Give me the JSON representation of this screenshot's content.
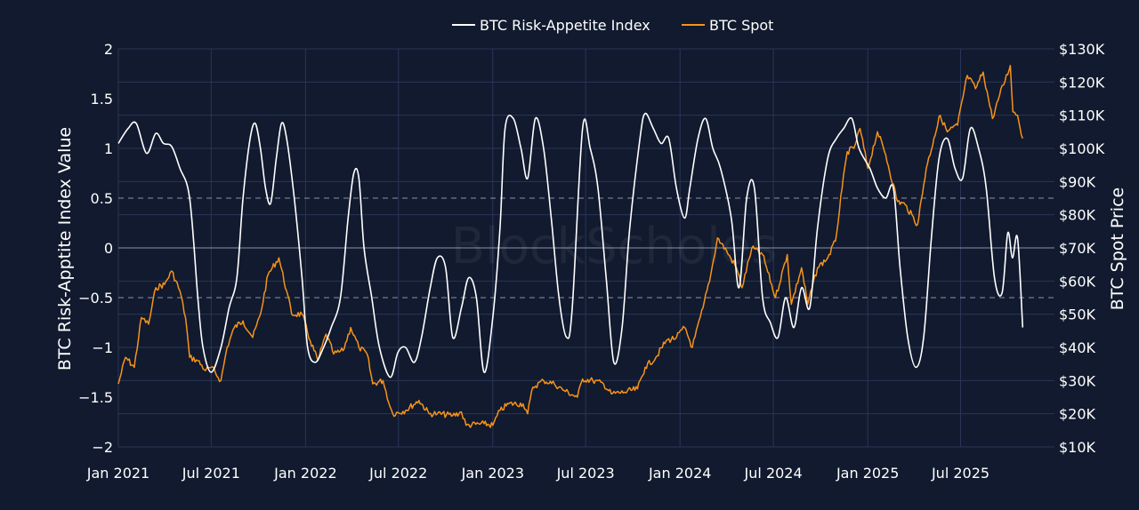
{
  "chart_data": {
    "type": "line",
    "watermark": "BlockScholes",
    "legend": {
      "placement": "top-center",
      "entries": [
        "BTC Risk-Appetite Index",
        "BTC Spot"
      ]
    },
    "colors": {
      "background": "#111a2e",
      "grid": "#2a3658",
      "index_line": "#ffffff",
      "spot_line": "#f7931a"
    },
    "x": {
      "min": "2021-01-01",
      "max": "2025-12-31",
      "ticks": [
        "2021-01-01",
        "2021-07-01",
        "2022-01-01",
        "2022-07-01",
        "2023-01-01",
        "2023-07-01",
        "2024-01-01",
        "2024-07-01",
        "2025-01-01",
        "2025-07-01"
      ],
      "tick_labels": [
        "Jan 2021",
        "Jul 2021",
        "Jan 2022",
        "Jul 2022",
        "Jan 2023",
        "Jul 2023",
        "Jan 2024",
        "Jul 2024",
        "Jan 2025",
        "Jul 2025"
      ]
    },
    "y_left": {
      "label": "BTC Risk-Apptite Index Value",
      "range": [
        -2,
        2
      ],
      "ticks": [
        2,
        1.5,
        1,
        0.5,
        0,
        -0.5,
        -1,
        -1.5,
        -2
      ],
      "tick_labels": [
        "2",
        "1.5",
        "1",
        "0.5",
        "0",
        "−0.5",
        "−1",
        "−1.5",
        "−2"
      ],
      "reference_lines": [
        0.5,
        -0.5
      ]
    },
    "y_right": {
      "label": "BTC Spot Price",
      "range": [
        10000,
        130000
      ],
      "ticks": [
        130000,
        120000,
        110000,
        100000,
        90000,
        80000,
        70000,
        60000,
        50000,
        40000,
        30000,
        20000,
        10000
      ],
      "tick_labels": [
        "$130K",
        "$120K",
        "$110K",
        "$100K",
        "$90K",
        "$80K",
        "$70K",
        "$60K",
        "$50K",
        "$40K",
        "$30K",
        "$20K",
        "$10K"
      ]
    },
    "series": [
      {
        "name": "BTC Risk-Appetite Index",
        "axis": "left",
        "points": [
          [
            "2021-01-01",
            1.05
          ],
          [
            "2021-01-20",
            1.2
          ],
          [
            "2021-02-05",
            1.25
          ],
          [
            "2021-02-25",
            0.95
          ],
          [
            "2021-03-15",
            1.15
          ],
          [
            "2021-03-30",
            1.05
          ],
          [
            "2021-04-15",
            1.02
          ],
          [
            "2021-05-01",
            0.8
          ],
          [
            "2021-05-20",
            0.5
          ],
          [
            "2021-06-05",
            -0.5
          ],
          [
            "2021-06-15",
            -1.0
          ],
          [
            "2021-07-01",
            -1.25
          ],
          [
            "2021-07-20",
            -1.0
          ],
          [
            "2021-08-05",
            -0.6
          ],
          [
            "2021-08-20",
            -0.3
          ],
          [
            "2021-09-01",
            0.5
          ],
          [
            "2021-09-15",
            1.1
          ],
          [
            "2021-09-25",
            1.25
          ],
          [
            "2021-10-05",
            1.0
          ],
          [
            "2021-10-15",
            0.6
          ],
          [
            "2021-10-25",
            0.45
          ],
          [
            "2021-11-05",
            0.9
          ],
          [
            "2021-11-15",
            1.25
          ],
          [
            "2021-11-25",
            1.1
          ],
          [
            "2021-12-10",
            0.5
          ],
          [
            "2021-12-25",
            -0.3
          ],
          [
            "2022-01-05",
            -1.0
          ],
          [
            "2022-01-20",
            -1.15
          ],
          [
            "2022-02-05",
            -1.0
          ],
          [
            "2022-02-20",
            -0.8
          ],
          [
            "2022-03-10",
            -0.5
          ],
          [
            "2022-03-25",
            0.3
          ],
          [
            "2022-04-05",
            0.75
          ],
          [
            "2022-04-15",
            0.7
          ],
          [
            "2022-04-25",
            0.0
          ],
          [
            "2022-05-10",
            -0.5
          ],
          [
            "2022-05-25",
            -1.0
          ],
          [
            "2022-06-15",
            -1.3
          ],
          [
            "2022-06-30",
            -1.05
          ],
          [
            "2022-07-15",
            -1.0
          ],
          [
            "2022-08-01",
            -1.15
          ],
          [
            "2022-08-15",
            -0.9
          ],
          [
            "2022-09-01",
            -0.4
          ],
          [
            "2022-09-15",
            -0.1
          ],
          [
            "2022-10-01",
            -0.2
          ],
          [
            "2022-10-15",
            -0.9
          ],
          [
            "2022-11-01",
            -0.6
          ],
          [
            "2022-11-15",
            -0.3
          ],
          [
            "2022-11-30",
            -0.5
          ],
          [
            "2022-12-15",
            -1.25
          ],
          [
            "2023-01-01",
            -0.7
          ],
          [
            "2023-01-15",
            0.2
          ],
          [
            "2023-01-25",
            1.2
          ],
          [
            "2023-02-10",
            1.3
          ],
          [
            "2023-02-25",
            1.0
          ],
          [
            "2023-03-10",
            0.7
          ],
          [
            "2023-03-25",
            1.3
          ],
          [
            "2023-04-10",
            1.0
          ],
          [
            "2023-04-25",
            0.3
          ],
          [
            "2023-05-10",
            -0.5
          ],
          [
            "2023-05-25",
            -0.9
          ],
          [
            "2023-06-05",
            -0.6
          ],
          [
            "2023-06-25",
            1.2
          ],
          [
            "2023-07-10",
            1.0
          ],
          [
            "2023-07-25",
            0.6
          ],
          [
            "2023-08-10",
            -0.3
          ],
          [
            "2023-08-25",
            -1.15
          ],
          [
            "2023-09-10",
            -0.8
          ],
          [
            "2023-09-25",
            0.2
          ],
          [
            "2023-10-15",
            1.1
          ],
          [
            "2023-10-25",
            1.35
          ],
          [
            "2023-11-10",
            1.2
          ],
          [
            "2023-11-25",
            1.05
          ],
          [
            "2023-12-10",
            1.1
          ],
          [
            "2023-12-25",
            0.6
          ],
          [
            "2024-01-10",
            0.3
          ],
          [
            "2024-01-20",
            0.6
          ],
          [
            "2024-02-05",
            1.1
          ],
          [
            "2024-02-20",
            1.3
          ],
          [
            "2024-03-05",
            1.0
          ],
          [
            "2024-03-20",
            0.8
          ],
          [
            "2024-04-10",
            0.3
          ],
          [
            "2024-04-25",
            -0.4
          ],
          [
            "2024-05-10",
            0.5
          ],
          [
            "2024-05-25",
            0.6
          ],
          [
            "2024-06-10",
            -0.5
          ],
          [
            "2024-06-25",
            -0.75
          ],
          [
            "2024-07-10",
            -0.9
          ],
          [
            "2024-07-25",
            -0.5
          ],
          [
            "2024-08-10",
            -0.8
          ],
          [
            "2024-08-25",
            -0.4
          ],
          [
            "2024-09-10",
            -0.6
          ],
          [
            "2024-09-25",
            0.2
          ],
          [
            "2024-10-15",
            0.9
          ],
          [
            "2024-11-01",
            1.1
          ],
          [
            "2024-11-15",
            1.2
          ],
          [
            "2024-12-01",
            1.3
          ],
          [
            "2024-12-15",
            1.0
          ],
          [
            "2025-01-05",
            0.8
          ],
          [
            "2025-01-20",
            0.6
          ],
          [
            "2025-02-05",
            0.5
          ],
          [
            "2025-02-20",
            0.6
          ],
          [
            "2025-03-05",
            -0.2
          ],
          [
            "2025-03-20",
            -0.9
          ],
          [
            "2025-04-05",
            -1.2
          ],
          [
            "2025-04-20",
            -0.9
          ],
          [
            "2025-05-05",
            0.1
          ],
          [
            "2025-05-20",
            0.9
          ],
          [
            "2025-06-05",
            1.1
          ],
          [
            "2025-06-20",
            0.8
          ],
          [
            "2025-07-05",
            0.7
          ],
          [
            "2025-07-20",
            1.2
          ],
          [
            "2025-08-05",
            1.0
          ],
          [
            "2025-08-20",
            0.6
          ],
          [
            "2025-09-05",
            -0.3
          ],
          [
            "2025-09-20",
            -0.45
          ],
          [
            "2025-10-01",
            0.15
          ],
          [
            "2025-10-10",
            -0.1
          ],
          [
            "2025-10-20",
            0.1
          ],
          [
            "2025-10-30",
            -0.8
          ]
        ]
      },
      {
        "name": "BTC Spot",
        "axis": "right",
        "points": [
          [
            "2021-01-01",
            29000
          ],
          [
            "2021-01-15",
            37000
          ],
          [
            "2021-02-01",
            34000
          ],
          [
            "2021-02-15",
            49000
          ],
          [
            "2021-03-01",
            47000
          ],
          [
            "2021-03-15",
            58000
          ],
          [
            "2021-04-01",
            59000
          ],
          [
            "2021-04-15",
            63000
          ],
          [
            "2021-05-01",
            57000
          ],
          [
            "2021-05-12",
            49000
          ],
          [
            "2021-05-20",
            37000
          ],
          [
            "2021-06-05",
            36000
          ],
          [
            "2021-06-20",
            33000
          ],
          [
            "2021-07-01",
            34000
          ],
          [
            "2021-07-20",
            30000
          ],
          [
            "2021-08-01",
            40000
          ],
          [
            "2021-08-15",
            46000
          ],
          [
            "2021-09-01",
            48000
          ],
          [
            "2021-09-20",
            43000
          ],
          [
            "2021-10-05",
            50000
          ],
          [
            "2021-10-20",
            62000
          ],
          [
            "2021-11-10",
            67000
          ],
          [
            "2021-11-25",
            57000
          ],
          [
            "2021-12-05",
            50000
          ],
          [
            "2021-12-25",
            50000
          ],
          [
            "2022-01-10",
            42000
          ],
          [
            "2022-01-25",
            36000
          ],
          [
            "2022-02-10",
            44000
          ],
          [
            "2022-02-25",
            38000
          ],
          [
            "2022-03-15",
            39000
          ],
          [
            "2022-03-30",
            46000
          ],
          [
            "2022-04-15",
            40000
          ],
          [
            "2022-05-01",
            38000
          ],
          [
            "2022-05-12",
            29000
          ],
          [
            "2022-06-01",
            30000
          ],
          [
            "2022-06-15",
            22000
          ],
          [
            "2022-06-20",
            20000
          ],
          [
            "2022-07-15",
            21000
          ],
          [
            "2022-08-10",
            24000
          ],
          [
            "2022-08-30",
            20000
          ],
          [
            "2022-09-15",
            20000
          ],
          [
            "2022-10-15",
            19500
          ],
          [
            "2022-11-01",
            20500
          ],
          [
            "2022-11-10",
            16500
          ],
          [
            "2022-12-15",
            17000
          ],
          [
            "2023-01-01",
            16500
          ],
          [
            "2023-01-15",
            21000
          ],
          [
            "2023-02-01",
            23000
          ],
          [
            "2023-03-01",
            23000
          ],
          [
            "2023-03-10",
            20000
          ],
          [
            "2023-03-20",
            28000
          ],
          [
            "2023-04-10",
            30000
          ],
          [
            "2023-05-01",
            29000
          ],
          [
            "2023-05-20",
            27000
          ],
          [
            "2023-06-15",
            25000
          ],
          [
            "2023-06-25",
            30500
          ],
          [
            "2023-07-15",
            30000
          ],
          [
            "2023-08-05",
            29000
          ],
          [
            "2023-08-20",
            26000
          ],
          [
            "2023-09-15",
            26500
          ],
          [
            "2023-10-10",
            27500
          ],
          [
            "2023-10-25",
            34000
          ],
          [
            "2023-11-15",
            37000
          ],
          [
            "2023-12-05",
            42000
          ],
          [
            "2023-12-25",
            43000
          ],
          [
            "2024-01-10",
            46000
          ],
          [
            "2024-01-25",
            40000
          ],
          [
            "2024-02-15",
            52000
          ],
          [
            "2024-03-01",
            62000
          ],
          [
            "2024-03-14",
            73000
          ],
          [
            "2024-04-01",
            69000
          ],
          [
            "2024-04-20",
            64000
          ],
          [
            "2024-05-01",
            58000
          ],
          [
            "2024-05-20",
            70000
          ],
          [
            "2024-06-10",
            68000
          ],
          [
            "2024-07-05",
            55000
          ],
          [
            "2024-07-28",
            68000
          ],
          [
            "2024-08-05",
            53000
          ],
          [
            "2024-08-25",
            64000
          ],
          [
            "2024-09-06",
            53000
          ],
          [
            "2024-09-25",
            64000
          ],
          [
            "2024-10-15",
            67000
          ],
          [
            "2024-10-30",
            72000
          ],
          [
            "2024-11-12",
            88000
          ],
          [
            "2024-11-22",
            99000
          ],
          [
            "2024-12-05",
            100000
          ],
          [
            "2024-12-17",
            106000
          ],
          [
            "2025-01-01",
            94000
          ],
          [
            "2025-01-20",
            105000
          ],
          [
            "2025-02-05",
            98000
          ],
          [
            "2025-02-28",
            84000
          ],
          [
            "2025-03-15",
            83000
          ],
          [
            "2025-04-08",
            77000
          ],
          [
            "2025-04-25",
            94000
          ],
          [
            "2025-05-10",
            103000
          ],
          [
            "2025-05-22",
            110000
          ],
          [
            "2025-06-05",
            105000
          ],
          [
            "2025-06-25",
            107000
          ],
          [
            "2025-07-14",
            122000
          ],
          [
            "2025-07-30",
            118000
          ],
          [
            "2025-08-14",
            123000
          ],
          [
            "2025-09-01",
            109000
          ],
          [
            "2025-09-15",
            116000
          ],
          [
            "2025-10-06",
            125000
          ],
          [
            "2025-10-11",
            111000
          ],
          [
            "2025-10-20",
            110000
          ],
          [
            "2025-10-30",
            103000
          ]
        ]
      }
    ]
  }
}
